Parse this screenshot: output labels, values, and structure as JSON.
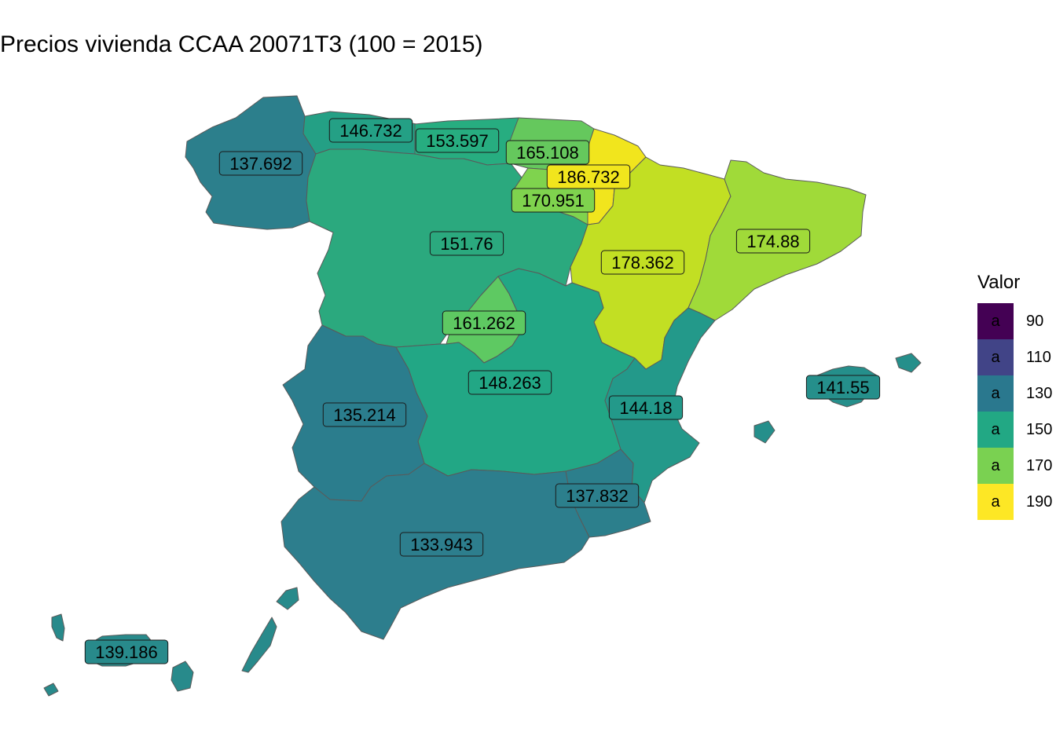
{
  "title": "Precios vivienda CCAA 20071T3 (100 = 2015)",
  "legend": {
    "title": "Valor",
    "glyph": "a",
    "keys": [
      {
        "label": "90",
        "color": "#440154"
      },
      {
        "label": "110",
        "color": "#414487"
      },
      {
        "label": "130",
        "color": "#2A788E"
      },
      {
        "label": "150",
        "color": "#22A884"
      },
      {
        "label": "170",
        "color": "#7AD151"
      },
      {
        "label": "190",
        "color": "#FDE725"
      }
    ]
  },
  "regions": [
    {
      "id": "galicia",
      "value": "137.692",
      "color": "#2c7f8c"
    },
    {
      "id": "asturias",
      "value": "146.732",
      "color": "#24a085"
    },
    {
      "id": "cantabria",
      "value": "153.597",
      "color": "#27ad80"
    },
    {
      "id": "pais-vasco",
      "value": "165.108",
      "color": "#65c85d"
    },
    {
      "id": "navarra",
      "value": "186.732",
      "color": "#f1e51d"
    },
    {
      "id": "la-rioja",
      "value": "170.951",
      "color": "#7fd34e"
    },
    {
      "id": "castilla-leon",
      "value": "151.76",
      "color": "#2ba97e"
    },
    {
      "id": "aragon",
      "value": "178.362",
      "color": "#c2df23"
    },
    {
      "id": "cataluna",
      "value": "174.88",
      "color": "#a0da39"
    },
    {
      "id": "madrid",
      "value": "161.262",
      "color": "#5ec962"
    },
    {
      "id": "castilla-la-mancha",
      "value": "148.263",
      "color": "#22a785"
    },
    {
      "id": "extremadura",
      "value": "135.214",
      "color": "#2b7d8d"
    },
    {
      "id": "valencia",
      "value": "144.18",
      "color": "#23998a"
    },
    {
      "id": "murcia",
      "value": "137.832",
      "color": "#2c7f8c"
    },
    {
      "id": "andalucia",
      "value": "133.943",
      "color": "#2d7e8d"
    },
    {
      "id": "baleares",
      "value": "141.55",
      "color": "#258f8b"
    },
    {
      "id": "canarias",
      "value": "139.186",
      "color": "#288a8b"
    }
  ]
}
